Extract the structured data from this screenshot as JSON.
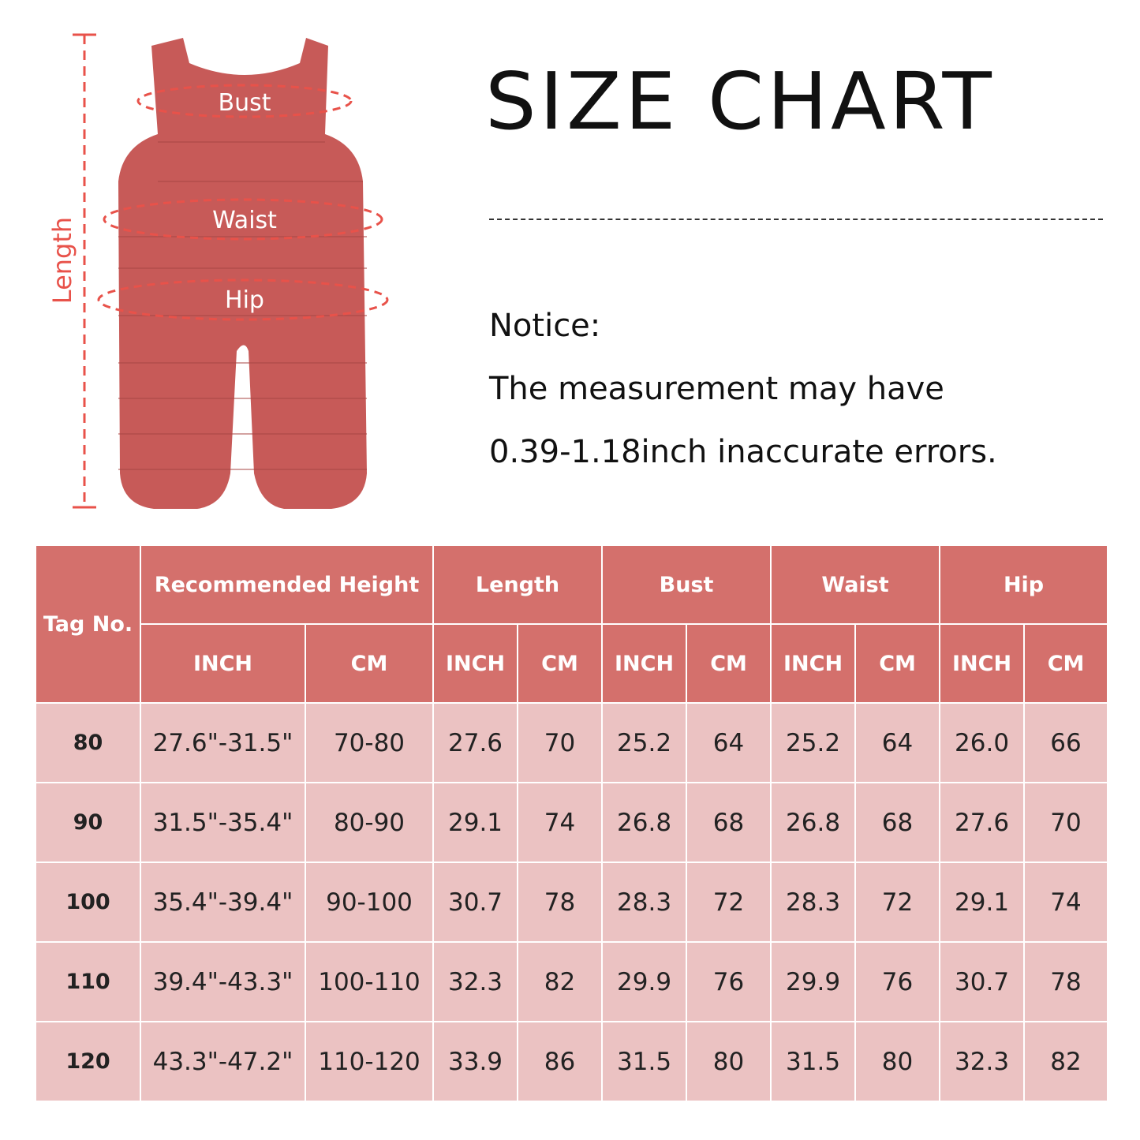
{
  "title": "SIZE CHART",
  "notice": {
    "heading": "Notice:",
    "line1": "The measurement may have",
    "line2": "0.39-1.18inch inaccurate errors."
  },
  "illustration": {
    "length_label": "Length",
    "bust_label": "Bust",
    "waist_label": "Waist",
    "hip_label": "Hip",
    "garment_color": "#c75a58",
    "measure_color": "#e8524a"
  },
  "colors": {
    "header_bg": "#d4706c",
    "row_bg": "#ebc2c2"
  },
  "table": {
    "tag_header": "Tag No.",
    "groups": [
      "Recommended Height",
      "Length",
      "Bust",
      "Waist",
      "Hip"
    ],
    "units": [
      "INCH",
      "CM",
      "INCH",
      "CM",
      "INCH",
      "CM",
      "INCH",
      "CM",
      "INCH",
      "CM"
    ],
    "rows": [
      [
        "80",
        "27.6\"-31.5\"",
        "70-80",
        "27.6",
        "70",
        "25.2",
        "64",
        "25.2",
        "64",
        "26.0",
        "66"
      ],
      [
        "90",
        "31.5\"-35.4\"",
        "80-90",
        "29.1",
        "74",
        "26.8",
        "68",
        "26.8",
        "68",
        "27.6",
        "70"
      ],
      [
        "100",
        "35.4\"-39.4\"",
        "90-100",
        "30.7",
        "78",
        "28.3",
        "72",
        "28.3",
        "72",
        "29.1",
        "74"
      ],
      [
        "110",
        "39.4\"-43.3\"",
        "100-110",
        "32.3",
        "82",
        "29.9",
        "76",
        "29.9",
        "76",
        "30.7",
        "78"
      ],
      [
        "120",
        "43.3\"-47.2\"",
        "110-120",
        "33.9",
        "86",
        "31.5",
        "80",
        "31.5",
        "80",
        "32.3",
        "82"
      ]
    ]
  }
}
